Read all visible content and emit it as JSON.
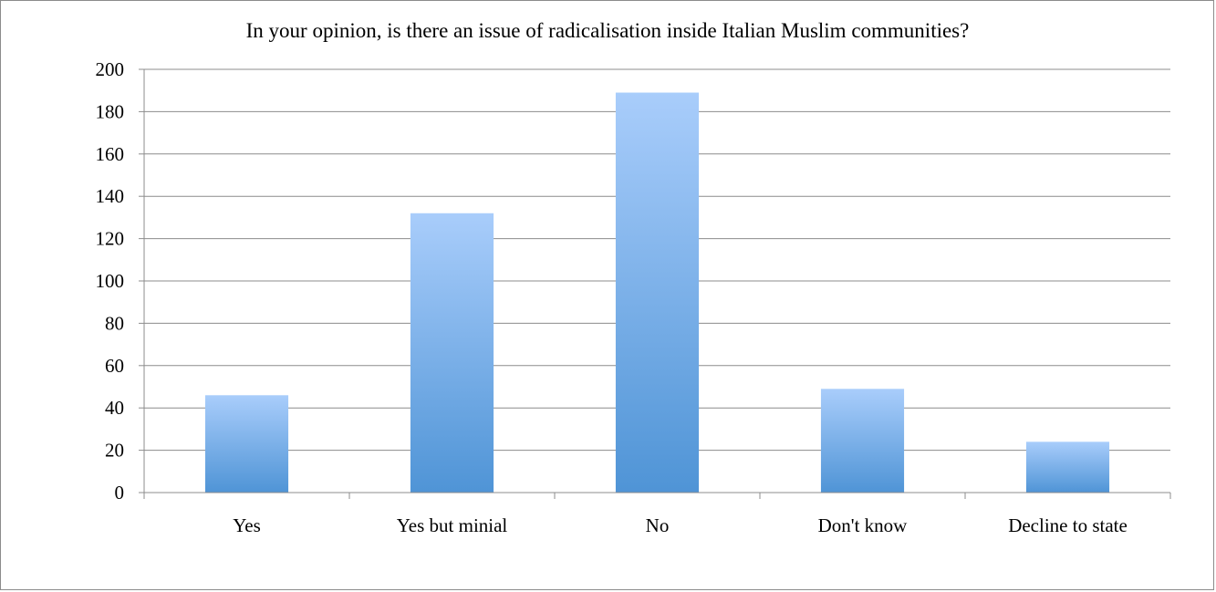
{
  "chart_data": {
    "type": "bar",
    "title": "In your opinion, is there an issue of radicalisation inside Italian Muslim communities?",
    "xlabel": "",
    "ylabel": "",
    "categories": [
      "Yes",
      "Yes but minial",
      "No",
      "Don't know",
      "Decline to state"
    ],
    "values": [
      46,
      132,
      189,
      49,
      24
    ],
    "ylim": [
      0,
      200
    ],
    "yticks": [
      0,
      20,
      40,
      60,
      80,
      100,
      120,
      140,
      160,
      180,
      200
    ],
    "grid": true,
    "legend": "none",
    "colors": {
      "bar_top": "#a9cdfb",
      "bar_bottom": "#4f94d6",
      "grid": "#8c8c8c",
      "axis": "#8c8c8c"
    }
  }
}
